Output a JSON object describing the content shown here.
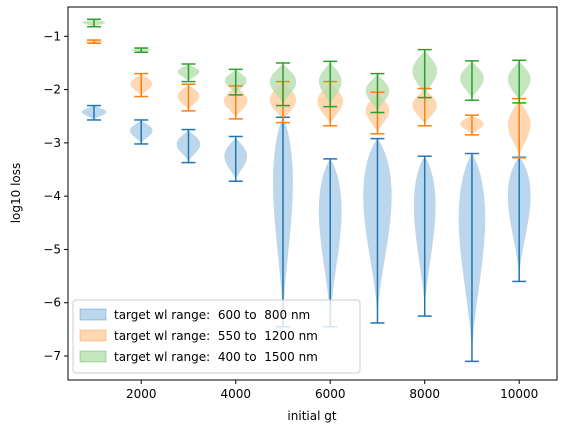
{
  "chart_data": {
    "type": "violin",
    "xlabel": "initial gt",
    "ylabel": "log10 loss",
    "xlim": [
      450,
      10800
    ],
    "ylim": [
      -7.45,
      -0.45
    ],
    "x_ticks": [
      2000,
      4000,
      6000,
      8000,
      10000
    ],
    "y_ticks": [
      -7,
      -6,
      -5,
      -4,
      -3,
      -2,
      -1
    ],
    "grid": false,
    "legend_position": "lower-left",
    "positions": [
      1000,
      2000,
      3000,
      4000,
      5000,
      6000,
      7000,
      8000,
      9000,
      10000
    ],
    "series": [
      {
        "name": "target wl range:  600 to  800 nm",
        "color": "#1f77b4",
        "fill": "#a6c8e5",
        "min": [
          -2.57,
          -3.02,
          -3.37,
          -3.72,
          -6.45,
          -6.45,
          -6.38,
          -6.25,
          -7.1,
          -5.6
        ],
        "max": [
          -2.3,
          -2.57,
          -2.75,
          -2.88,
          -2.52,
          -3.3,
          -2.92,
          -3.25,
          -3.2,
          -3.27
        ],
        "half_width": [
          260,
          240,
          250,
          240,
          210,
          240,
          300,
          230,
          280,
          240
        ]
      },
      {
        "name": "target wl range:  550 to  1200 nm",
        "color": "#ff7f0e",
        "fill": "#ffcb99",
        "min": [
          -1.13,
          -2.13,
          -2.4,
          -2.55,
          -2.62,
          -2.68,
          -2.83,
          -2.68,
          -2.85,
          -3.28
        ],
        "max": [
          -1.07,
          -1.7,
          -1.9,
          -1.93,
          -1.85,
          -1.85,
          -2.05,
          -1.98,
          -2.48,
          -2.17
        ],
        "half_width": [
          200,
          230,
          230,
          250,
          280,
          270,
          250,
          260,
          250,
          240
        ]
      },
      {
        "name": "target wl range:  400 to  1500 nm",
        "color": "#2ca02c",
        "fill": "#b0dca8",
        "min": [
          -0.82,
          -1.3,
          -1.85,
          -2.1,
          -2.3,
          -2.32,
          -2.43,
          -2.15,
          -2.2,
          -2.25
        ],
        "max": [
          -0.68,
          -1.22,
          -1.52,
          -1.62,
          -1.5,
          -1.47,
          -1.7,
          -1.25,
          -1.46,
          -1.45
        ],
        "half_width": [
          240,
          210,
          230,
          230,
          280,
          240,
          250,
          260,
          250,
          240
        ]
      }
    ]
  }
}
